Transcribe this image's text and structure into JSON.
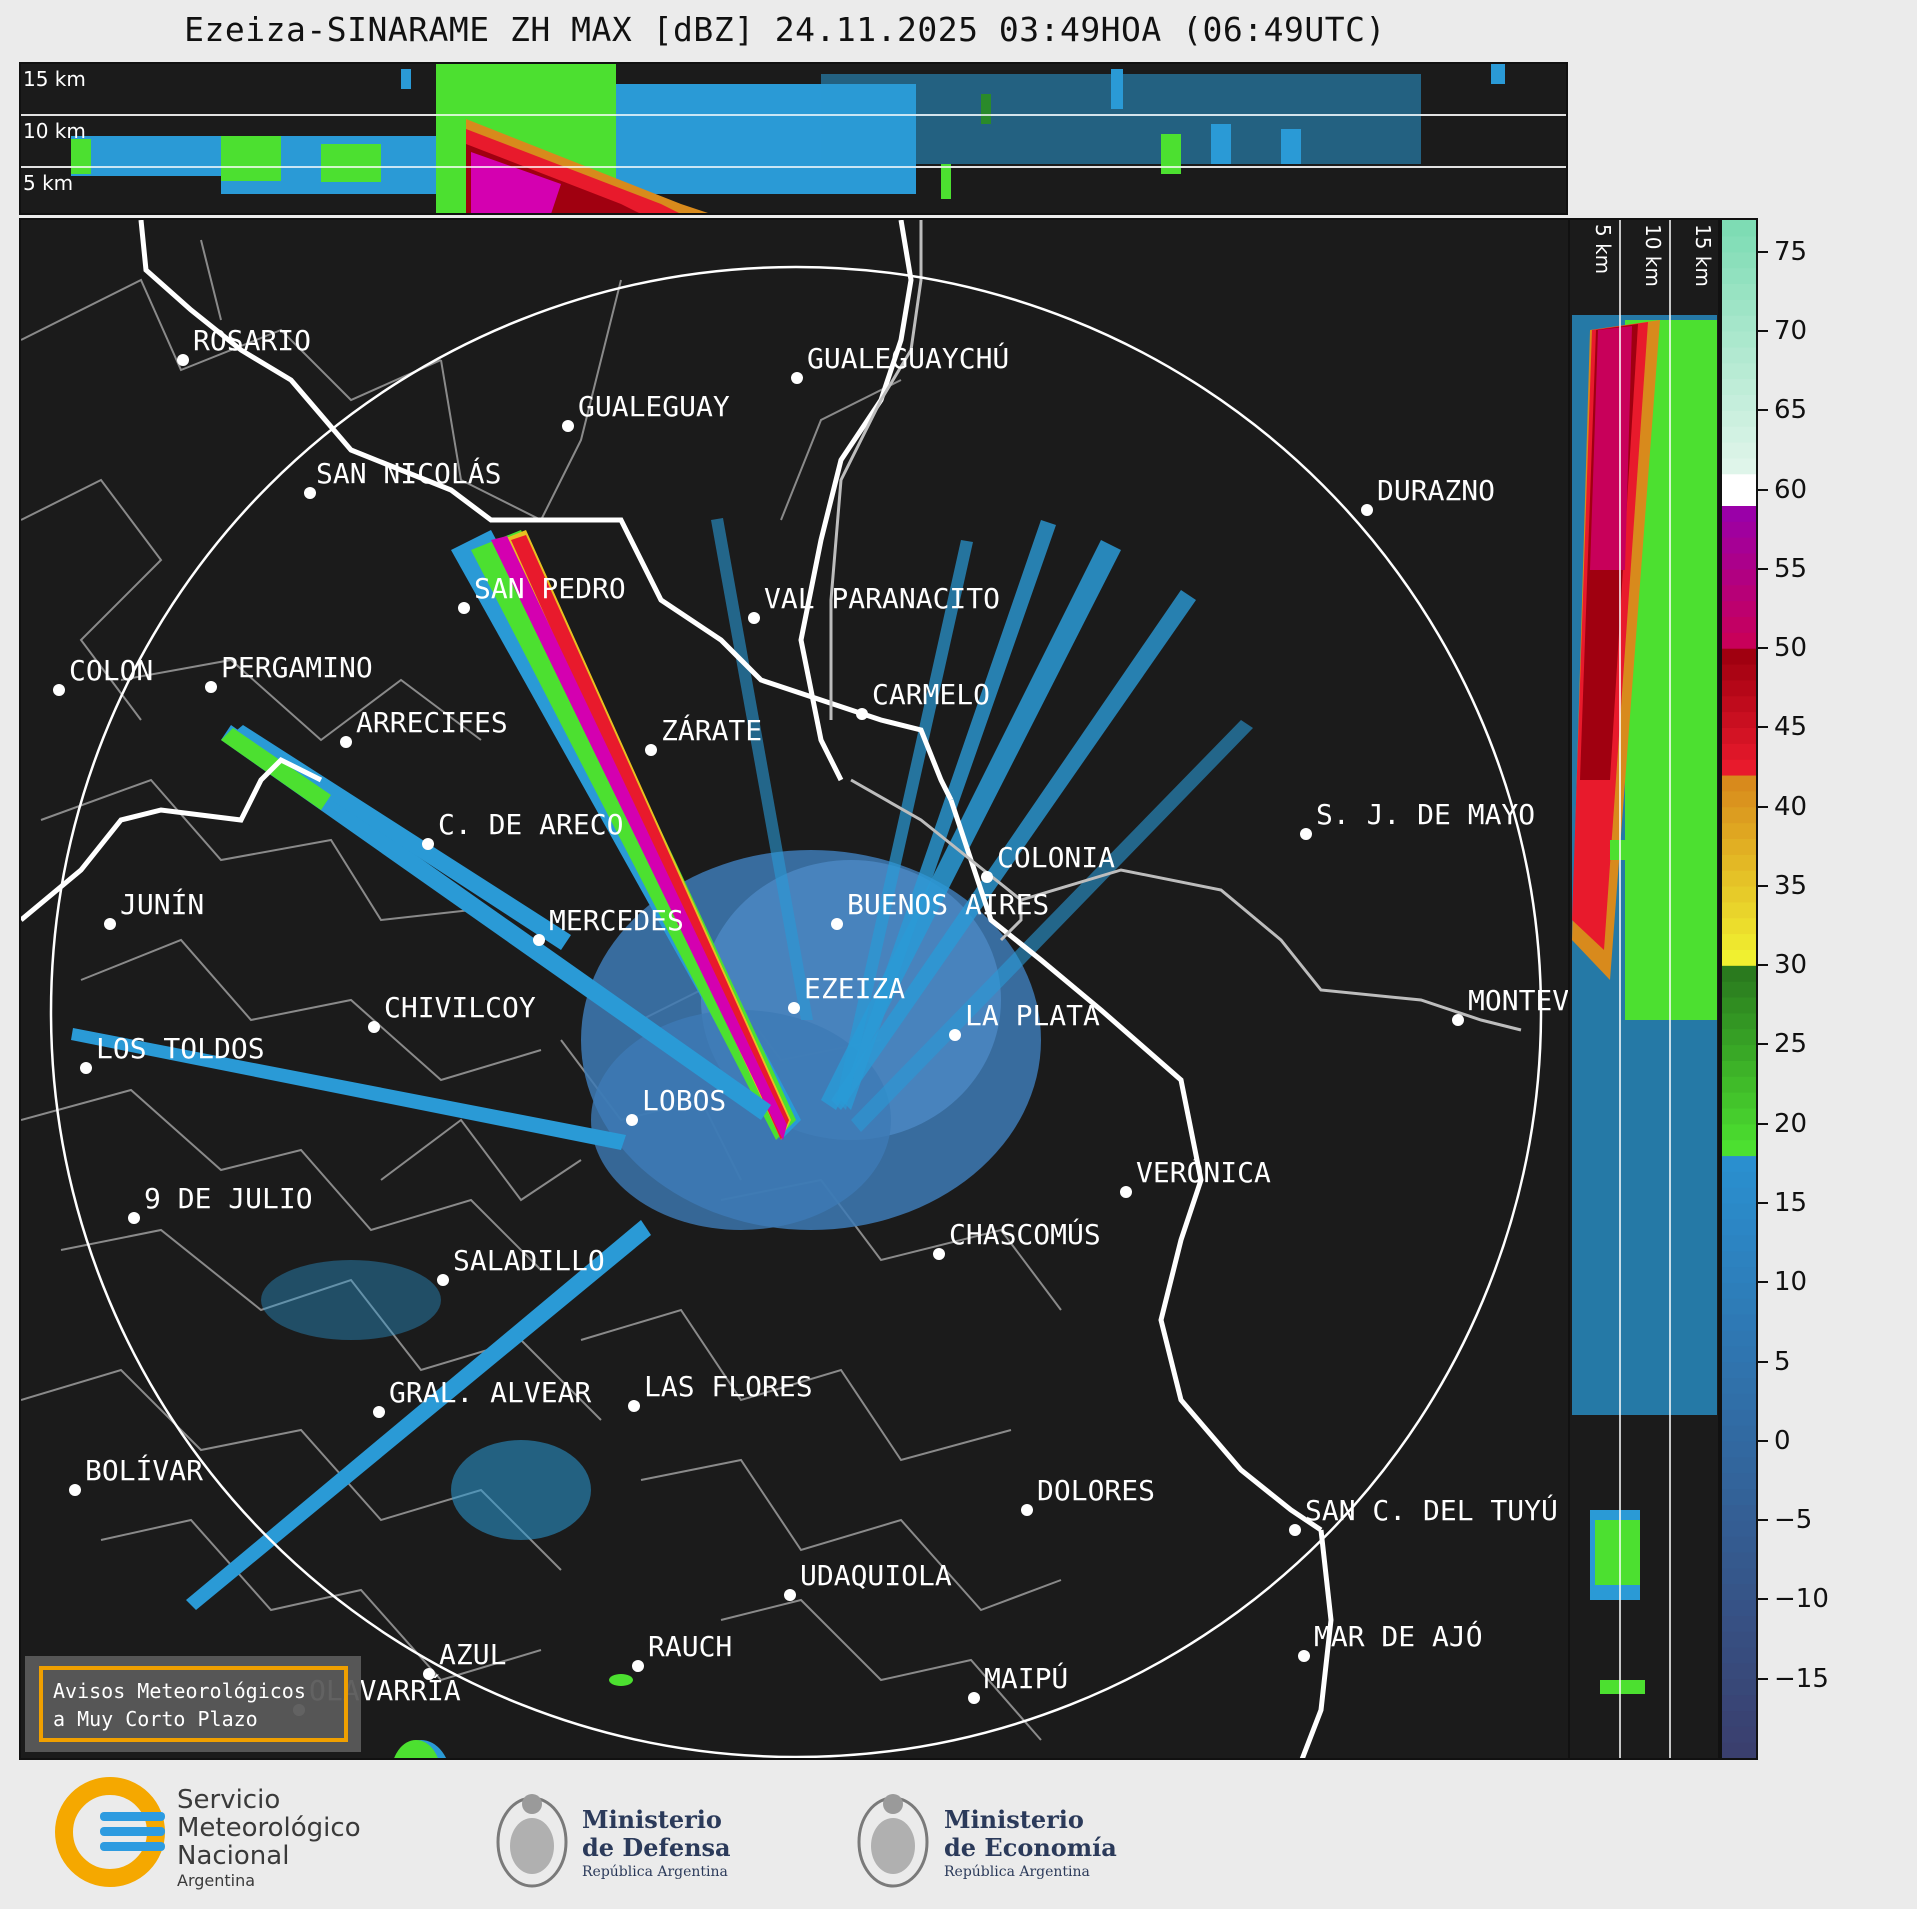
{
  "title": "Ezeiza-SINARAME ZH MAX [dBZ] 24.11.2025 03:49HOA (06:49UTC)",
  "top_panel": {
    "height_labels": [
      "15 km",
      "10 km",
      "5 km"
    ]
  },
  "side_panel": {
    "height_labels": [
      "5 km",
      "10 km",
      "15 km"
    ]
  },
  "colorbar": {
    "unit": "dBZ",
    "tick_labels": [
      "75",
      "70",
      "65",
      "60",
      "55",
      "50",
      "45",
      "40",
      "35",
      "30",
      "25",
      "20",
      "15",
      "10",
      "5",
      "0",
      "−5",
      "−10",
      "−15"
    ],
    "tick_values": [
      75,
      70,
      65,
      60,
      55,
      50,
      45,
      40,
      35,
      30,
      25,
      20,
      15,
      10,
      5,
      0,
      -5,
      -10,
      -15
    ],
    "range": [
      -20,
      77
    ],
    "bands": [
      {
        "from": -20,
        "to": 18,
        "color_low": "#3a3f6e",
        "color_high": "#2a8fcf"
      },
      {
        "from": 18,
        "to": 30,
        "color_low": "#4ce030",
        "color_high": "#2a7a1e"
      },
      {
        "from": 30,
        "to": 42,
        "color_low": "#f0f030",
        "color_high": "#d88a1c"
      },
      {
        "from": 42,
        "to": 50,
        "color_low": "#e81a2c",
        "color_high": "#a00010"
      },
      {
        "from": 50,
        "to": 59,
        "color_low": "#c8005a",
        "color_high": "#9a00a8"
      },
      {
        "from": 59,
        "to": 61,
        "color_low": "#ffffff",
        "color_high": "#ffffff"
      },
      {
        "from": 61,
        "to": 77,
        "color_low": "#dff5ea",
        "color_high": "#7edcb4"
      }
    ]
  },
  "cities": [
    {
      "name": "ROSARIO"
    },
    {
      "name": "GUALEGUAYCHÚ"
    },
    {
      "name": "GUALEGUAY"
    },
    {
      "name": "SAN NICOLÁS"
    },
    {
      "name": "DURAZNO"
    },
    {
      "name": "SAN PEDRO"
    },
    {
      "name": "VAL PARANACITO"
    },
    {
      "name": "COLON"
    },
    {
      "name": "PERGAMINO"
    },
    {
      "name": "CARMELO"
    },
    {
      "name": "ARRECIFES"
    },
    {
      "name": "ZÁRATE"
    },
    {
      "name": "S. J. DE MAYO"
    },
    {
      "name": "C. DE ARECO"
    },
    {
      "name": "COLONIA"
    },
    {
      "name": "JUNÍN"
    },
    {
      "name": "BUENOS AIRES"
    },
    {
      "name": "MERCEDES"
    },
    {
      "name": "EZEIZA"
    },
    {
      "name": "MONTEV"
    },
    {
      "name": "CHIVILCOY"
    },
    {
      "name": "LA PLATA"
    },
    {
      "name": "LOS TOLDOS"
    },
    {
      "name": "LOBOS"
    },
    {
      "name": "VERÓNICA"
    },
    {
      "name": "9 DE JULIO"
    },
    {
      "name": "CHASCOMÚS"
    },
    {
      "name": "SALADILLO"
    },
    {
      "name": "GRAL. ALVEAR"
    },
    {
      "name": "LAS FLORES"
    },
    {
      "name": "BOLÍVAR"
    },
    {
      "name": "DOLORES"
    },
    {
      "name": "SAN C. DEL TUYÚ"
    },
    {
      "name": "UDAQUIOLA"
    },
    {
      "name": "MAR DE AJÓ"
    },
    {
      "name": "AZUL"
    },
    {
      "name": "RAUCH"
    },
    {
      "name": "OLAVARRÍA"
    },
    {
      "name": "MAIPÚ"
    }
  ],
  "warning_box": {
    "line1": "Avisos Meteorológicos",
    "line2": "a Muy Corto Plazo",
    "border_color": "#f0a000"
  },
  "footer": {
    "smn": {
      "line1": "Servicio",
      "line2": "Meteorológico",
      "line3": "Nacional",
      "line4": "Argentina"
    },
    "defensa": {
      "line1": "Ministerio",
      "line2": "de Defensa",
      "line3": "República Argentina"
    },
    "economia": {
      "line1": "Ministerio",
      "line2": "de Economía",
      "line3": "República Argentina"
    }
  },
  "colors": {
    "map_background": "#1b1b1b",
    "coast": "#ffffff",
    "borders": "#8a8a8a",
    "range_ring": "#ffffff"
  }
}
